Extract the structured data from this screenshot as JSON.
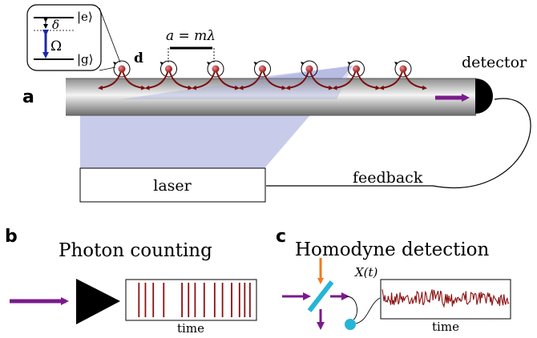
{
  "panels": {
    "a": {
      "letter": "a",
      "level_diagram": {
        "excited_state": "|e⟩",
        "ground_state": "|g⟩",
        "detuning": "δ",
        "rabi": "Ω"
      },
      "dipole_label": "d",
      "spacing_label": "a = mλ",
      "detector_label": "detector",
      "laser_label": "laser",
      "feedback_label": "feedback",
      "atom_count": 7
    },
    "b": {
      "letter": "b",
      "title": "Photon counting",
      "axis_label": "time"
    },
    "c": {
      "letter": "c",
      "title": "Homodyne detection",
      "signal_label": "X(t)",
      "axis_label": "time"
    }
  },
  "colors": {
    "atom": "#b01c1c",
    "emission_arrow": "#7a0f0f",
    "laser_beam": "#9aa0d8",
    "flux_arrow": "#7a1b8c",
    "rabi_arrow": "#1b2aa6",
    "beam_splitter": "#25b5d6",
    "local_oscillator": "#f07c1c",
    "trace": "#8b1010"
  }
}
